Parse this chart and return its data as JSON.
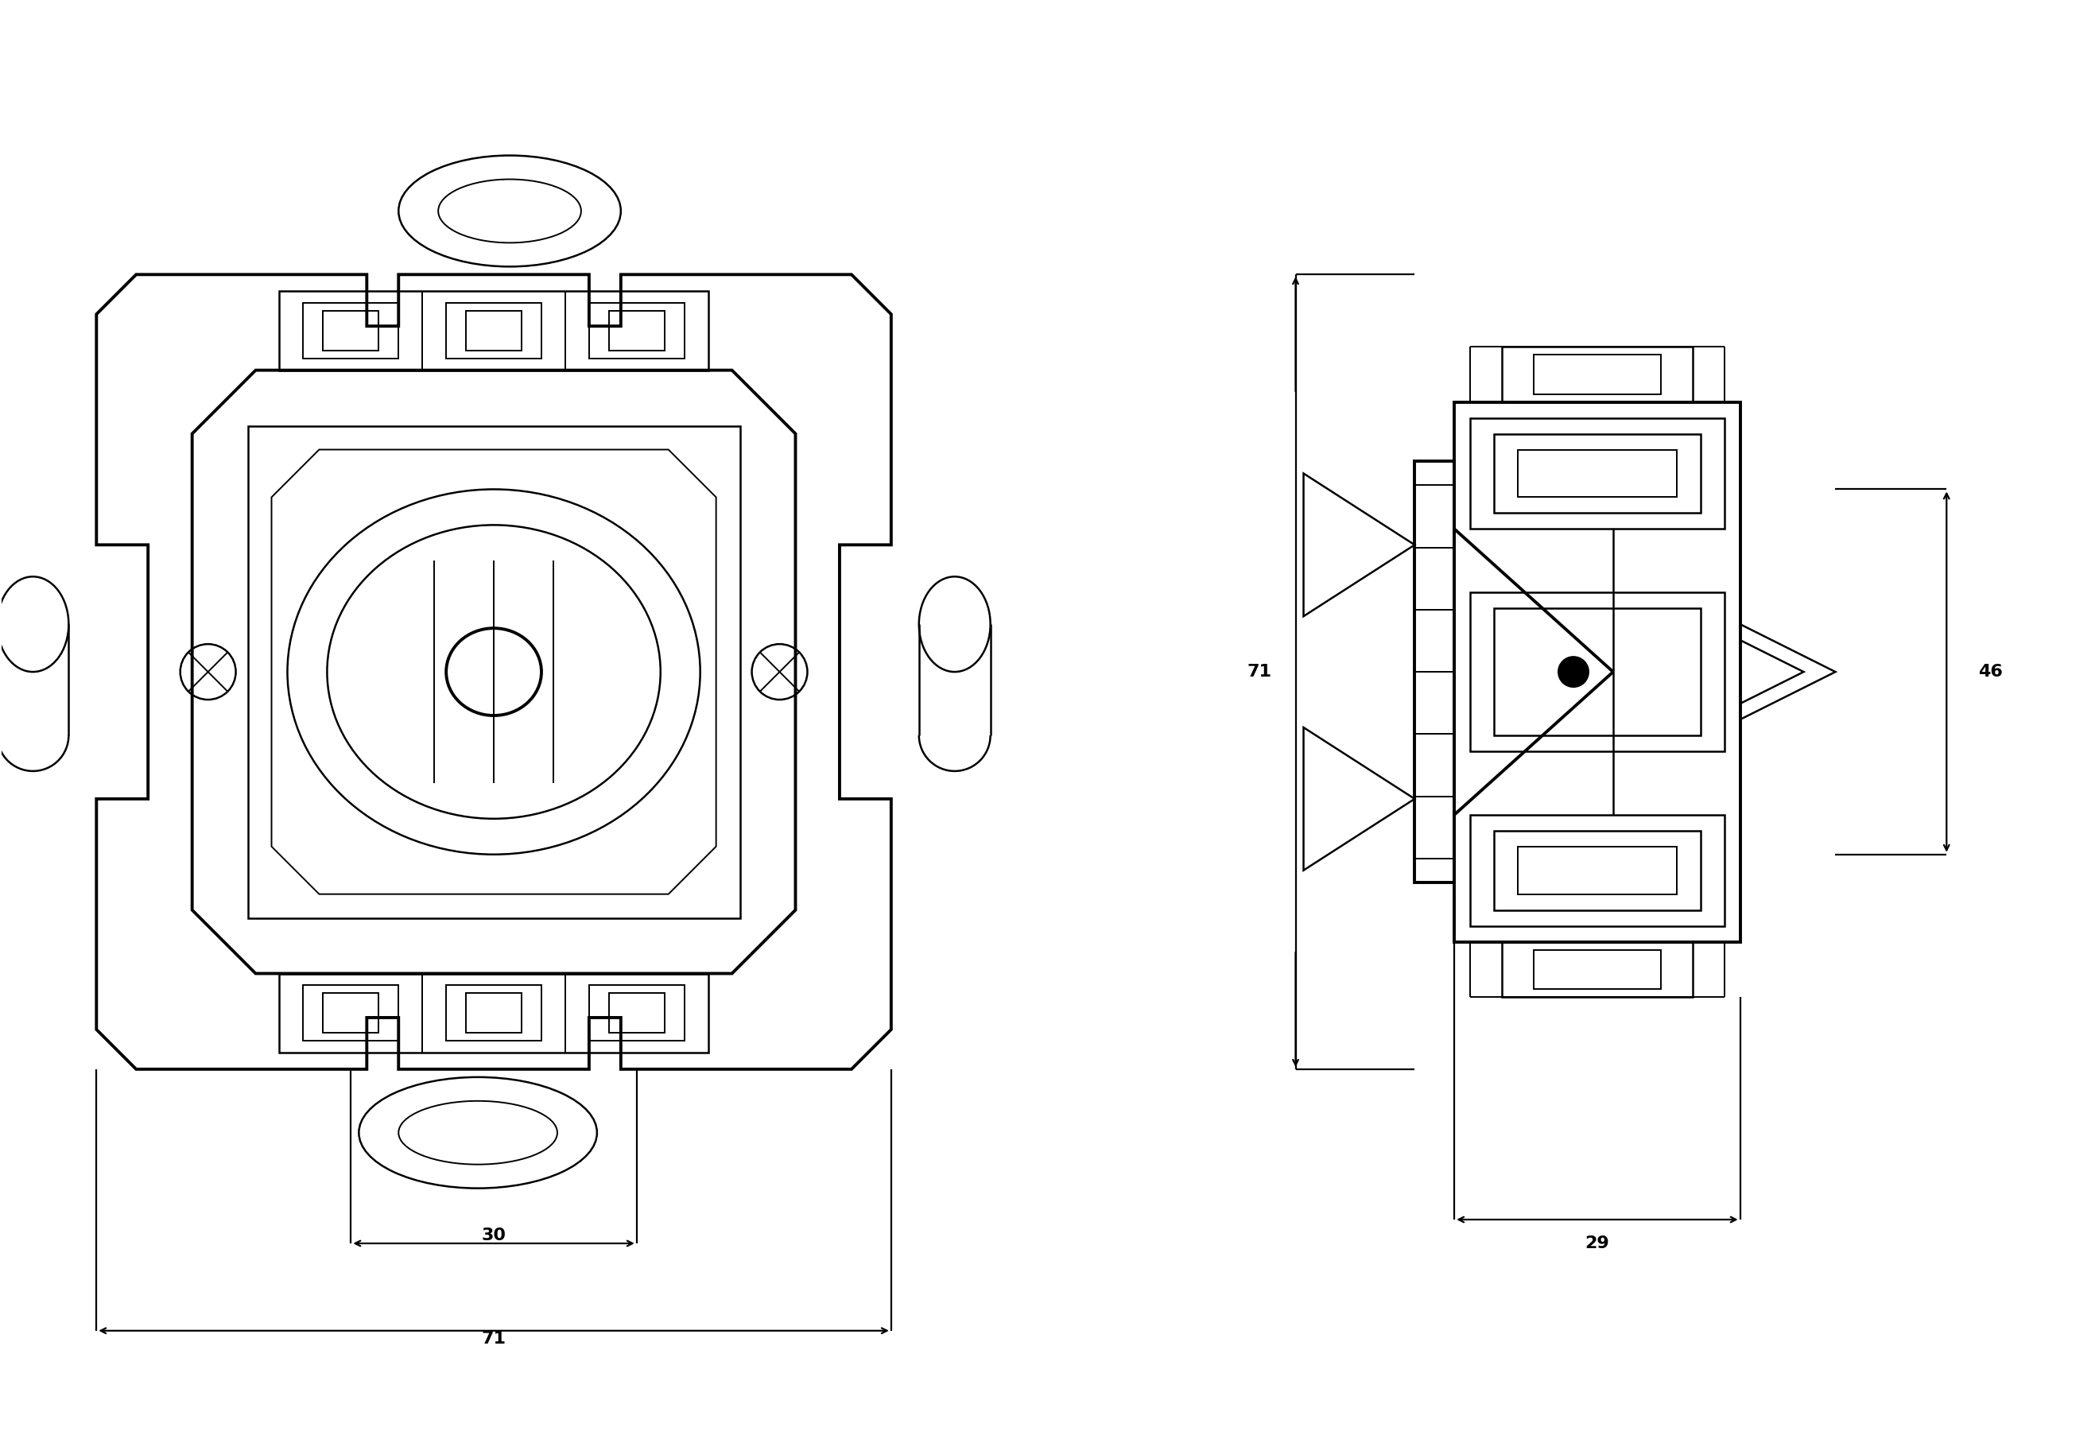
{
  "bg": "#ffffff",
  "lc": "#000000",
  "lw": 2.8,
  "lw2": 1.8,
  "lw3": 1.4,
  "lw_dim": 1.6,
  "fig_w": 26.4,
  "fig_h": 18.05,
  "labels": {
    "30": "30",
    "71": "71",
    "71h": "71",
    "46": "46",
    "29": "29"
  }
}
